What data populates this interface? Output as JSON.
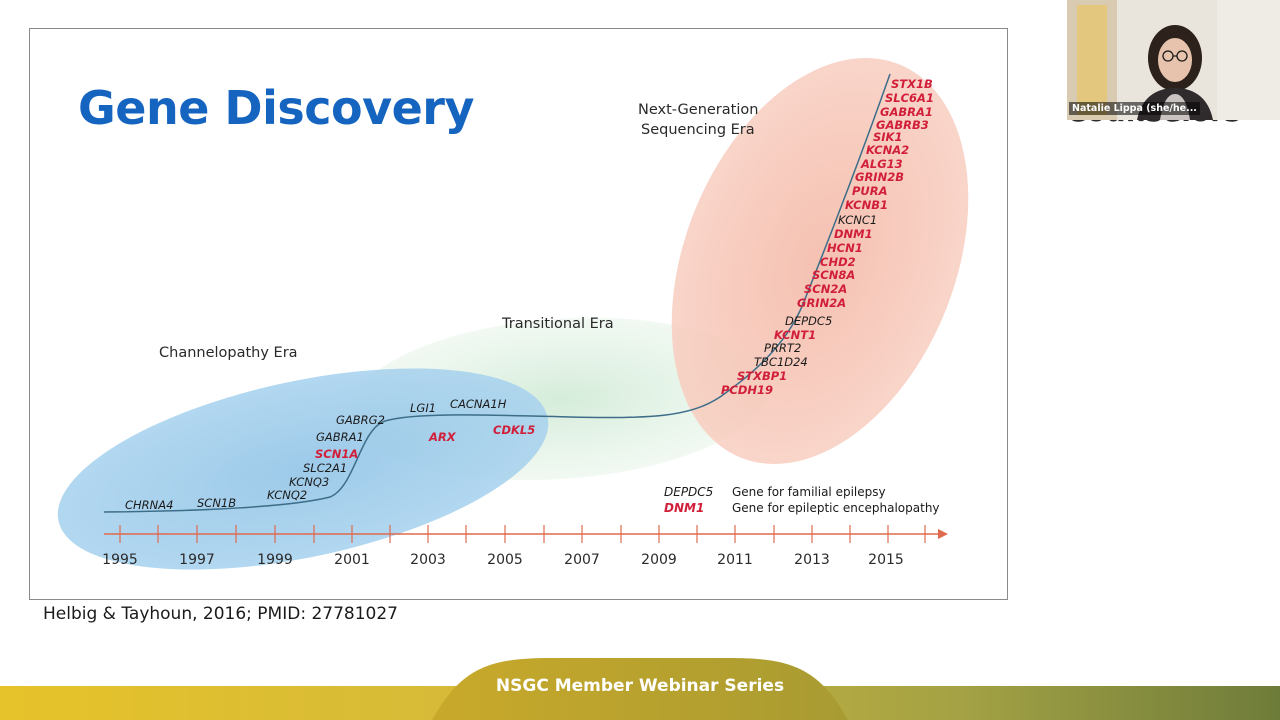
{
  "slide": {
    "title": "Gene Discovery",
    "citation": "Helbig & Tayhoun, 2016; PMID: 27781027"
  },
  "figure": {
    "eras": {
      "channelopathy": "Channelopathy Era",
      "transitional": "Transitional Era",
      "ngs_line1": "Next-Generation",
      "ngs_line2": "Sequencing Era"
    },
    "axis_years": [
      "1995",
      "1997",
      "1999",
      "2001",
      "2003",
      "2005",
      "2007",
      "2009",
      "2011",
      "2013",
      "2015"
    ],
    "genes": {
      "chrna4": "CHRNA4",
      "scn1b": "SCN1B",
      "kcnq2": "KCNQ2",
      "kcnq3": "KCNQ3",
      "slc2a1": "SLC2A1",
      "scn1a": "SCN1A",
      "gabra1": "GABRA1",
      "gabrg2": "GABRG2",
      "lgi1": "LGI1",
      "cacna1h": "CACNA1H",
      "arx": "ARX",
      "cdkl5": "CDKL5",
      "pcdh19": "PCDH19",
      "stxbp1": "STXBP1",
      "tbc1d24": "TBC1D24",
      "prrt2": "PRRT2",
      "kcnt1": "KCNT1",
      "depdc5": "DEPDC5",
      "grin2a": "GRIN2A",
      "scn2a": "SCN2A",
      "scn8a": "SCN8A",
      "chd2": "CHD2",
      "hcn1": "HCN1",
      "dnm1": "DNM1",
      "kcnc1": "KCNC1",
      "kcnb1": "KCNB1",
      "pura": "PURA",
      "grin2b": "GRIN2B",
      "alg13": "ALG13",
      "kcna2": "KCNA2",
      "sik1": "SIK1",
      "gabrb3": "GABRB3",
      "gabra1_ngs": "GABRA1",
      "slc6a1": "SLC6A1",
      "stx1b": "STX1B"
    },
    "legend": {
      "familial_gene": "DEPDC5",
      "familial_desc": "Gene for familial epilepsy",
      "encephalopathy_gene": "DNM1",
      "encephalopathy_desc": "Gene for epileptic encephalopathy"
    },
    "colors": {
      "familial": "#1a1a1a",
      "encephalopathy": "#d11f3a",
      "axis": "#e06a4f",
      "curve": "#3d6d88"
    }
  },
  "webcam": {
    "participant_name": "Natalie Lippa (she/he...",
    "occluded_text": "Counselors"
  },
  "footer": {
    "series_label": "NSGC Member Webinar Series"
  }
}
